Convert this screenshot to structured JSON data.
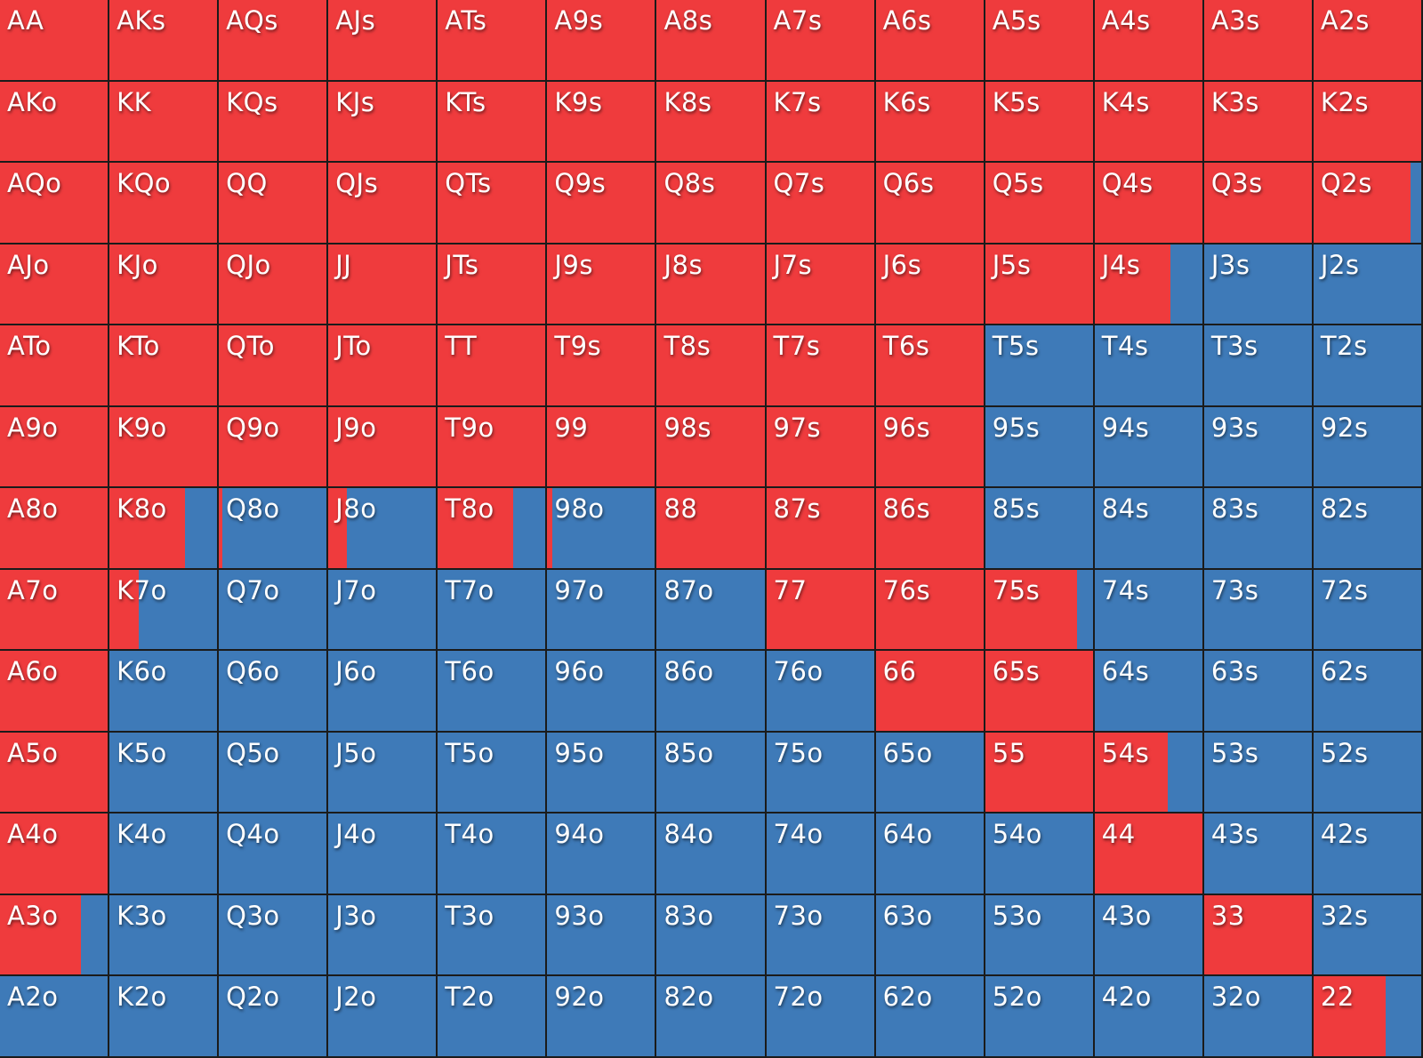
{
  "chart_data": {
    "type": "heatmap",
    "colors": {
      "raise": "#ef3b3d",
      "fold": "#3e7ab8"
    },
    "grid": [
      [
        [
          "AA",
          1
        ],
        [
          "AKs",
          1
        ],
        [
          "AQs",
          1
        ],
        [
          "AJs",
          1
        ],
        [
          "ATs",
          1
        ],
        [
          "A9s",
          1
        ],
        [
          "A8s",
          1
        ],
        [
          "A7s",
          1
        ],
        [
          "A6s",
          1
        ],
        [
          "A5s",
          1
        ],
        [
          "A4s",
          1
        ],
        [
          "A3s",
          1
        ],
        [
          "A2s",
          1
        ]
      ],
      [
        [
          "AKo",
          1
        ],
        [
          "KK",
          1
        ],
        [
          "KQs",
          1
        ],
        [
          "KJs",
          1
        ],
        [
          "KTs",
          1
        ],
        [
          "K9s",
          1
        ],
        [
          "K8s",
          1
        ],
        [
          "K7s",
          1
        ],
        [
          "K6s",
          1
        ],
        [
          "K5s",
          1
        ],
        [
          "K4s",
          1
        ],
        [
          "K3s",
          1
        ],
        [
          "K2s",
          1
        ]
      ],
      [
        [
          "AQo",
          1
        ],
        [
          "KQo",
          1
        ],
        [
          "QQ",
          1
        ],
        [
          "QJs",
          1
        ],
        [
          "QTs",
          1
        ],
        [
          "Q9s",
          1
        ],
        [
          "Q8s",
          1
        ],
        [
          "Q7s",
          1
        ],
        [
          "Q6s",
          1
        ],
        [
          "Q5s",
          1
        ],
        [
          "Q4s",
          1
        ],
        [
          "Q3s",
          1
        ],
        [
          "Q2s",
          0.9
        ]
      ],
      [
        [
          "AJo",
          1
        ],
        [
          "KJo",
          1
        ],
        [
          "QJo",
          1
        ],
        [
          "JJ",
          1
        ],
        [
          "JTs",
          1
        ],
        [
          "J9s",
          1
        ],
        [
          "J8s",
          1
        ],
        [
          "J7s",
          1
        ],
        [
          "J6s",
          1
        ],
        [
          "J5s",
          1
        ],
        [
          "J4s",
          0.7
        ],
        [
          "J3s",
          0
        ],
        [
          "J2s",
          0
        ]
      ],
      [
        [
          "ATo",
          1
        ],
        [
          "KTo",
          1
        ],
        [
          "QTo",
          1
        ],
        [
          "JTo",
          1
        ],
        [
          "TT",
          1
        ],
        [
          "T9s",
          1
        ],
        [
          "T8s",
          1
        ],
        [
          "T7s",
          1
        ],
        [
          "T6s",
          1
        ],
        [
          "T5s",
          0
        ],
        [
          "T4s",
          0
        ],
        [
          "T3s",
          0
        ],
        [
          "T2s",
          0
        ]
      ],
      [
        [
          "A9o",
          1
        ],
        [
          "K9o",
          1
        ],
        [
          "Q9o",
          1
        ],
        [
          "J9o",
          1
        ],
        [
          "T9o",
          1
        ],
        [
          "99",
          1
        ],
        [
          "98s",
          1
        ],
        [
          "97s",
          1
        ],
        [
          "96s",
          1
        ],
        [
          "95s",
          0
        ],
        [
          "94s",
          0
        ],
        [
          "93s",
          0
        ],
        [
          "92s",
          0
        ]
      ],
      [
        [
          "A8o",
          1
        ],
        [
          "K8o",
          0.7
        ],
        [
          "Q8o",
          0.03
        ],
        [
          "J8o",
          0.17
        ],
        [
          "T8o",
          0.7
        ],
        [
          "98o",
          0.05
        ],
        [
          "88",
          1
        ],
        [
          "87s",
          1
        ],
        [
          "86s",
          1
        ],
        [
          "85s",
          0
        ],
        [
          "84s",
          0
        ],
        [
          "83s",
          0
        ],
        [
          "82s",
          0
        ]
      ],
      [
        [
          "A7o",
          1
        ],
        [
          "K7o",
          0.27
        ],
        [
          "Q7o",
          0
        ],
        [
          "J7o",
          0
        ],
        [
          "T7o",
          0
        ],
        [
          "97o",
          0
        ],
        [
          "87o",
          0
        ],
        [
          "77",
          1
        ],
        [
          "76s",
          1
        ],
        [
          "75s",
          0.85
        ],
        [
          "74s",
          0
        ],
        [
          "73s",
          0
        ],
        [
          "72s",
          0
        ]
      ],
      [
        [
          "A6o",
          1
        ],
        [
          "K6o",
          0
        ],
        [
          "Q6o",
          0
        ],
        [
          "J6o",
          0
        ],
        [
          "T6o",
          0
        ],
        [
          "96o",
          0
        ],
        [
          "86o",
          0
        ],
        [
          "76o",
          0
        ],
        [
          "66",
          1
        ],
        [
          "65s",
          1
        ],
        [
          "64s",
          0
        ],
        [
          "63s",
          0
        ],
        [
          "62s",
          0
        ]
      ],
      [
        [
          "A5o",
          1
        ],
        [
          "K5o",
          0
        ],
        [
          "Q5o",
          0
        ],
        [
          "J5o",
          0
        ],
        [
          "T5o",
          0
        ],
        [
          "95o",
          0
        ],
        [
          "85o",
          0
        ],
        [
          "75o",
          0
        ],
        [
          "65o",
          0
        ],
        [
          "55",
          1
        ],
        [
          "54s",
          0.68
        ],
        [
          "53s",
          0
        ],
        [
          "52s",
          0
        ]
      ],
      [
        [
          "A4o",
          1
        ],
        [
          "K4o",
          0
        ],
        [
          "Q4o",
          0
        ],
        [
          "J4o",
          0
        ],
        [
          "T4o",
          0
        ],
        [
          "94o",
          0
        ],
        [
          "84o",
          0
        ],
        [
          "74o",
          0
        ],
        [
          "64o",
          0
        ],
        [
          "54o",
          0
        ],
        [
          "44",
          1
        ],
        [
          "43s",
          0
        ],
        [
          "42s",
          0
        ]
      ],
      [
        [
          "A3o",
          0.75
        ],
        [
          "K3o",
          0
        ],
        [
          "Q3o",
          0
        ],
        [
          "J3o",
          0
        ],
        [
          "T3o",
          0
        ],
        [
          "93o",
          0
        ],
        [
          "83o",
          0
        ],
        [
          "73o",
          0
        ],
        [
          "63o",
          0
        ],
        [
          "53o",
          0
        ],
        [
          "43o",
          0
        ],
        [
          "33",
          1
        ],
        [
          "32s",
          0
        ]
      ],
      [
        [
          "A2o",
          0
        ],
        [
          "K2o",
          0
        ],
        [
          "Q2o",
          0
        ],
        [
          "J2o",
          0
        ],
        [
          "T2o",
          0
        ],
        [
          "92o",
          0
        ],
        [
          "82o",
          0
        ],
        [
          "72o",
          0
        ],
        [
          "62o",
          0
        ],
        [
          "52o",
          0
        ],
        [
          "42o",
          0
        ],
        [
          "32o",
          0
        ],
        [
          "22",
          0.67
        ]
      ]
    ]
  }
}
